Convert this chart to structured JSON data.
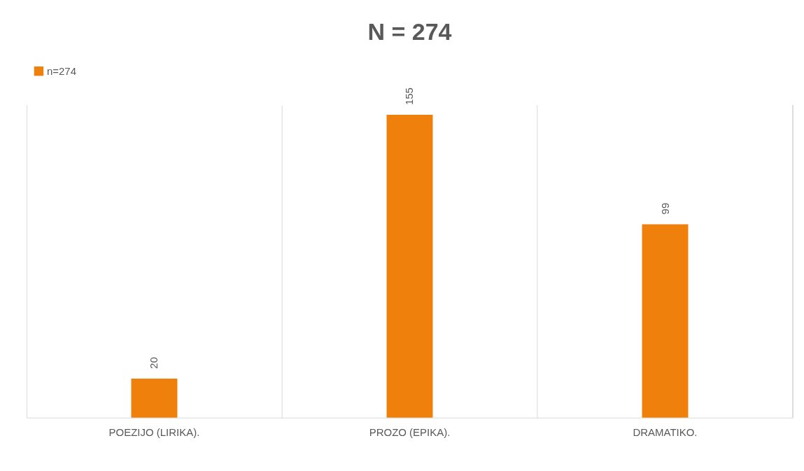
{
  "chart_data": {
    "type": "bar",
    "title": "N = 274",
    "categories": [
      "POEZIJO (LIRIKA).",
      "PROZO (EPIKA).",
      "DRAMATIKO."
    ],
    "series": [
      {
        "name": "n=274",
        "color": "#f0800c",
        "values": [
          20,
          155,
          99
        ]
      }
    ],
    "data_labels": true,
    "grid": "x",
    "legend": "top"
  }
}
